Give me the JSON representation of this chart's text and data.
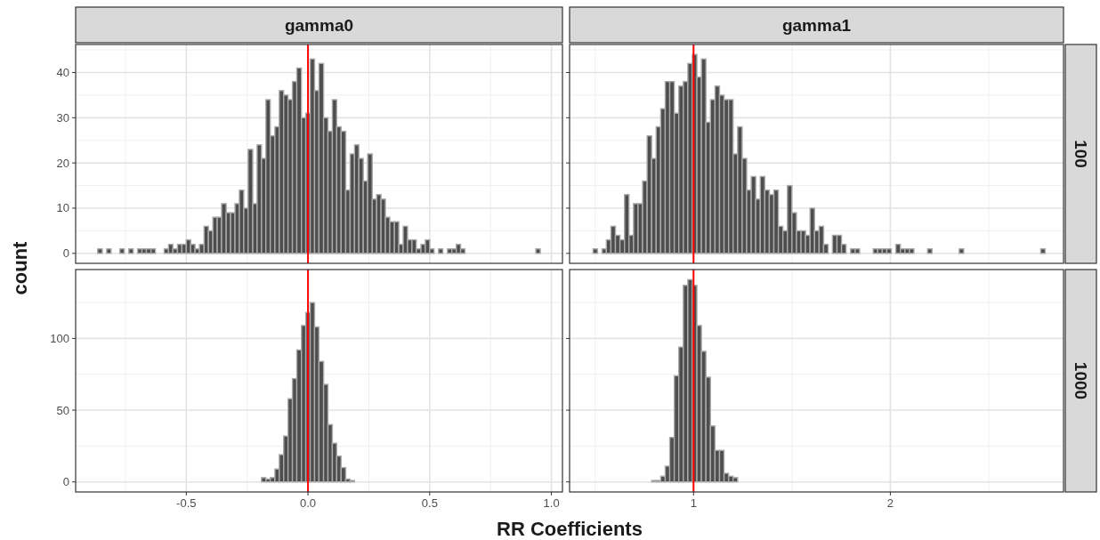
{
  "chart_data": [
    {
      "type": "histogram",
      "title": "gamma0",
      "ylabel": "count",
      "grid": true,
      "tick_labels": "y",
      "bins": [
        -0.864,
        -0.845,
        -0.827,
        -0.809,
        -0.791,
        -0.773,
        -0.755,
        -0.736,
        -0.718,
        -0.7,
        -0.682,
        -0.664,
        -0.645,
        -0.627,
        -0.609,
        -0.591,
        -0.573,
        -0.555,
        -0.536,
        -0.518,
        -0.5,
        -0.482,
        -0.464,
        -0.446,
        -0.427,
        -0.409,
        -0.391,
        -0.373,
        -0.355,
        -0.336,
        -0.318,
        -0.3,
        -0.282,
        -0.264,
        -0.246,
        -0.227,
        -0.209,
        -0.191,
        -0.173,
        -0.155,
        -0.136,
        -0.118,
        -0.1,
        -0.082,
        -0.064,
        -0.046,
        -0.027,
        -0.009,
        0.009,
        0.027,
        0.045,
        0.064,
        0.082,
        0.1,
        0.118,
        0.136,
        0.155,
        0.173,
        0.191,
        0.209,
        0.227,
        0.245,
        0.264,
        0.282,
        0.3,
        0.318,
        0.336,
        0.355,
        0.373,
        0.391,
        0.409,
        0.427,
        0.445,
        0.464,
        0.482,
        0.5,
        0.518,
        0.536,
        0.554,
        0.573,
        0.591,
        0.609,
        0.627,
        0.645,
        0.664,
        0.682,
        0.7,
        0.718,
        0.736,
        0.754,
        0.773,
        0.791,
        0.809,
        0.827,
        0.845,
        0.864,
        0.882,
        0.9,
        0.918,
        0.936,
        0.954
      ],
      "values": [
        1,
        0,
        1,
        0,
        0,
        1,
        0,
        1,
        0,
        1,
        1,
        1,
        1,
        0,
        0,
        1,
        2,
        1,
        2,
        2,
        3,
        2,
        1,
        2,
        6,
        5,
        8,
        8,
        11,
        9,
        9,
        11,
        14,
        10,
        23,
        11,
        24,
        21,
        34,
        26,
        28,
        36,
        35,
        34,
        38,
        41,
        30,
        31,
        43,
        36,
        42,
        30,
        27,
        34,
        28,
        27,
        14,
        22,
        24,
        21,
        16,
        22,
        12,
        13,
        12,
        8,
        7,
        7,
        2,
        6,
        3,
        3,
        1,
        2,
        3,
        1,
        0,
        1,
        0,
        1,
        1,
        2,
        1,
        0,
        0,
        0,
        0,
        0,
        0,
        0,
        0,
        0,
        0,
        0,
        0,
        0,
        0,
        0,
        0,
        1
      ],
      "color": "#4d4d4d",
      "xlim": [
        -0.9545,
        1.0453
      ],
      "ylim": [
        -2.2,
        46.2
      ],
      "yticks": [
        0,
        10,
        20,
        30,
        40
      ],
      "ref_lines": [
        {
          "axis": "x",
          "value": 0,
          "color": "#ff0000"
        }
      ]
    },
    {
      "type": "histogram",
      "title": "gamma1",
      "annotations": [
        "100"
      ],
      "grid": true,
      "tick_labels": false,
      "bins": [
        0.489,
        0.512,
        0.535,
        0.557,
        0.58,
        0.603,
        0.626,
        0.649,
        0.672,
        0.695,
        0.718,
        0.741,
        0.764,
        0.787,
        0.81,
        0.833,
        0.856,
        0.879,
        0.902,
        0.925,
        0.948,
        0.971,
        0.994,
        1.017,
        1.04,
        1.063,
        1.086,
        1.109,
        1.132,
        1.155,
        1.178,
        1.201,
        1.224,
        1.247,
        1.27,
        1.293,
        1.316,
        1.339,
        1.362,
        1.385,
        1.408,
        1.431,
        1.454,
        1.477,
        1.5,
        1.523,
        1.546,
        1.569,
        1.592,
        1.615,
        1.638,
        1.661,
        1.684,
        1.706,
        1.729,
        1.752,
        1.775,
        1.798,
        1.821,
        1.844,
        1.867,
        1.89,
        1.913,
        1.936,
        1.959,
        1.982,
        2.005,
        2.028,
        2.051,
        2.074,
        2.097,
        2.12,
        2.143,
        2.166,
        2.189,
        2.212,
        2.235,
        2.258,
        2.281,
        2.304,
        2.327,
        2.35,
        2.373,
        2.396,
        2.419,
        2.442,
        2.465,
        2.488,
        2.511,
        2.534,
        2.557,
        2.58,
        2.603,
        2.626,
        2.649,
        2.672,
        2.695,
        2.718,
        2.741,
        2.764,
        2.787
      ],
      "values": [
        1,
        0,
        1,
        3,
        6,
        4,
        3,
        13,
        4,
        11,
        11,
        16,
        26,
        21,
        28,
        32,
        38,
        38,
        31,
        37,
        38,
        42,
        44,
        39,
        43,
        29,
        34,
        37,
        35,
        34,
        34,
        22,
        28,
        21,
        14,
        17,
        12,
        17,
        14,
        13,
        14,
        6,
        5,
        15,
        9,
        5,
        5,
        4,
        10,
        5,
        6,
        2,
        0,
        4,
        4,
        2,
        0,
        1,
        1,
        0,
        0,
        0,
        1,
        1,
        1,
        1,
        0,
        2,
        1,
        1,
        1,
        0,
        0,
        0,
        1,
        0,
        0,
        0,
        0,
        0,
        0,
        1,
        0,
        0,
        0,
        0,
        0,
        0,
        0,
        0,
        0,
        0,
        0,
        0,
        0,
        0,
        0,
        0,
        0,
        1
      ],
      "color": "#4d4d4d",
      "xlim": [
        0.37,
        2.88
      ],
      "ylim": [
        -2.2,
        46.2
      ],
      "yticks": [
        0,
        10,
        20,
        30,
        40
      ],
      "ref_lines": [
        {
          "axis": "x",
          "value": 1,
          "color": "#ff0000"
        }
      ]
    },
    {
      "type": "histogram",
      "xlabel": "RR Coefficients",
      "grid": true,
      "bins": [
        -0.864,
        -0.845,
        -0.827,
        -0.809,
        -0.791,
        -0.773,
        -0.755,
        -0.736,
        -0.718,
        -0.7,
        -0.682,
        -0.664,
        -0.645,
        -0.627,
        -0.609,
        -0.591,
        -0.573,
        -0.555,
        -0.536,
        -0.518,
        -0.5,
        -0.482,
        -0.464,
        -0.446,
        -0.427,
        -0.409,
        -0.391,
        -0.373,
        -0.355,
        -0.336,
        -0.318,
        -0.3,
        -0.282,
        -0.264,
        -0.246,
        -0.227,
        -0.209,
        -0.191,
        -0.173,
        -0.155,
        -0.136,
        -0.118,
        -0.1,
        -0.082,
        -0.064,
        -0.046,
        -0.027,
        -0.009,
        0.009,
        0.027,
        0.045,
        0.064,
        0.082,
        0.1,
        0.118,
        0.136,
        0.155,
        0.173,
        0.191,
        0.209,
        0.227,
        0.245,
        0.264,
        0.282,
        0.3,
        0.318,
        0.336,
        0.355,
        0.373,
        0.391,
        0.409,
        0.427,
        0.445,
        0.464,
        0.482,
        0.5,
        0.518,
        0.536,
        0.554,
        0.573,
        0.591,
        0.609,
        0.627,
        0.645,
        0.664,
        0.682,
        0.7,
        0.718,
        0.736,
        0.754,
        0.773,
        0.791,
        0.809,
        0.827,
        0.845,
        0.864,
        0.882,
        0.9,
        0.918,
        0.936,
        0.954
      ],
      "values": [
        0,
        0,
        0,
        0,
        0,
        0,
        0,
        0,
        0,
        0,
        0,
        0,
        0,
        0,
        0,
        0,
        0,
        0,
        0,
        0,
        0,
        0,
        0,
        0,
        0,
        0,
        0,
        0,
        0,
        0,
        0,
        0,
        0,
        0,
        0,
        0,
        0,
        3,
        2,
        3,
        9,
        19,
        32,
        58,
        72,
        92,
        109,
        118,
        125,
        108,
        84,
        68,
        40,
        27,
        18,
        10,
        2,
        1,
        0,
        0,
        0,
        0,
        0,
        0,
        0,
        0,
        0,
        0,
        0,
        0,
        0,
        0,
        0,
        0,
        0,
        0,
        0,
        0,
        0,
        0,
        0,
        0,
        0,
        0,
        0,
        0,
        0,
        0,
        0,
        0,
        0,
        0,
        0,
        0,
        0,
        0,
        0,
        0,
        0,
        0
      ],
      "color": "#4d4d4d",
      "xlim": [
        -0.9545,
        1.0453
      ],
      "xticks": [
        -0.5,
        {
          "value": 0,
          "label": "0.0"
        },
        0.5,
        {
          "value": 1,
          "label": "1.0"
        }
      ],
      "ylim": [
        -7,
        148
      ],
      "yticks": [
        0,
        50,
        100
      ],
      "ref_lines": [
        {
          "axis": "x",
          "value": 0,
          "color": "#ff0000"
        }
      ]
    },
    {
      "type": "histogram",
      "annotations": [
        "1000"
      ],
      "grid": true,
      "tick_labels": "x",
      "bins": [
        0.489,
        0.512,
        0.535,
        0.557,
        0.58,
        0.603,
        0.626,
        0.649,
        0.672,
        0.695,
        0.718,
        0.741,
        0.764,
        0.787,
        0.81,
        0.833,
        0.856,
        0.879,
        0.902,
        0.925,
        0.948,
        0.971,
        0.994,
        1.017,
        1.04,
        1.063,
        1.086,
        1.109,
        1.132,
        1.155,
        1.178,
        1.201,
        1.224,
        1.247,
        1.27,
        1.293,
        1.316,
        1.339,
        1.362,
        1.385,
        1.408,
        1.431,
        1.454,
        1.477,
        1.5,
        1.523,
        1.546,
        1.569,
        1.592,
        1.615,
        1.638,
        1.661,
        1.684,
        1.706,
        1.729,
        1.752,
        1.775,
        1.798,
        1.821,
        1.844,
        1.867,
        1.89,
        1.913,
        1.936,
        1.959,
        1.982,
        2.005,
        2.028,
        2.051,
        2.074,
        2.097,
        2.12,
        2.143,
        2.166,
        2.189,
        2.212,
        2.235,
        2.258,
        2.281,
        2.304,
        2.327,
        2.35,
        2.373,
        2.396,
        2.419,
        2.442,
        2.465,
        2.488,
        2.511,
        2.534,
        2.557,
        2.58,
        2.603,
        2.626,
        2.649,
        2.672,
        2.695,
        2.718,
        2.741,
        2.764,
        2.787
      ],
      "values": [
        0,
        0,
        0,
        0,
        0,
        0,
        0,
        0,
        0,
        0,
        0,
        0,
        0,
        1,
        1,
        4,
        11,
        31,
        74,
        94,
        137,
        141,
        137,
        109,
        91,
        73,
        39,
        22,
        22,
        6,
        4,
        3,
        0,
        0,
        0,
        0,
        0,
        0,
        0,
        0,
        0,
        0,
        0,
        0,
        0,
        0,
        0,
        0,
        0,
        0,
        0,
        0,
        0,
        0,
        0,
        0,
        0,
        0,
        0,
        0,
        0,
        0,
        0,
        0,
        0,
        0,
        0,
        0,
        0,
        0,
        0,
        0,
        0,
        0,
        0,
        0,
        0,
        0,
        0,
        0,
        0,
        0,
        0,
        0,
        0,
        0,
        0,
        0,
        0,
        0,
        0,
        0,
        0,
        0,
        0,
        0,
        0,
        0,
        0,
        0
      ],
      "color": "#4d4d4d",
      "xlim": [
        0.37,
        2.88
      ],
      "xticks": [
        1,
        2
      ],
      "ylim": [
        -7,
        148
      ],
      "yticks": [
        0,
        50,
        100
      ],
      "ref_lines": [
        {
          "axis": "x",
          "value": 1,
          "color": "#ff0000"
        }
      ]
    }
  ]
}
